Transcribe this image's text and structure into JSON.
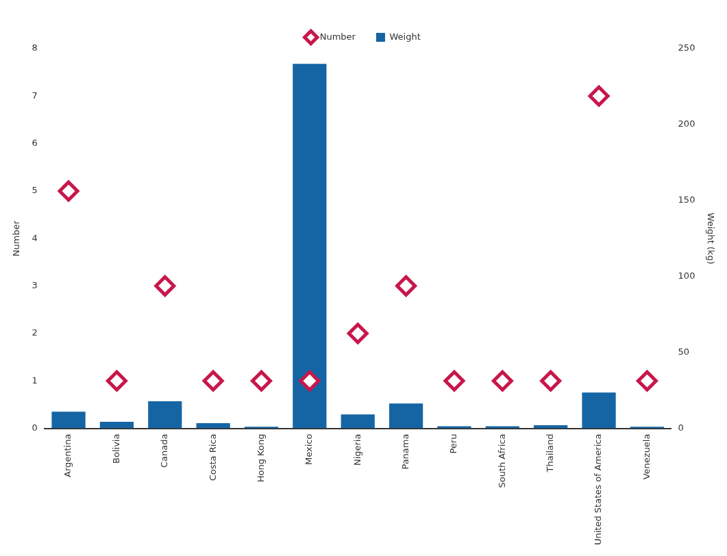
{
  "chart_data": {
    "type": "bar",
    "categories": [
      "Argentina",
      "Bolivia",
      "Canada",
      "Costa Rica",
      "Hong Kong",
      "Mexico",
      "Nigeria",
      "Panama",
      "Peru",
      "South Africa",
      "Thailand",
      "United States of America",
      "Venezuela"
    ],
    "ylabel": "Number",
    "y2label": "Weight (kg)",
    "ylim": [
      0,
      8
    ],
    "yticks": [
      0,
      1,
      2,
      3,
      4,
      5,
      6,
      7,
      8
    ],
    "y2lim": [
      0,
      250
    ],
    "y2ticks": [
      0,
      50,
      100,
      150,
      200,
      250
    ],
    "grid": false,
    "legend": "top",
    "series": [
      {
        "name": "Number",
        "type": "scatter",
        "marker": "diamond",
        "color": "#c8174a",
        "values": [
          5,
          1,
          3,
          1,
          1,
          1,
          2,
          3,
          1,
          1,
          1,
          7,
          1
        ]
      },
      {
        "name": "Weight",
        "axis": "y2",
        "color": "#1565a5",
        "values": [
          11,
          4.3,
          17.8,
          3.4,
          1,
          240,
          9.2,
          16.4,
          1.4,
          1.4,
          2,
          23.6,
          1
        ]
      }
    ]
  }
}
